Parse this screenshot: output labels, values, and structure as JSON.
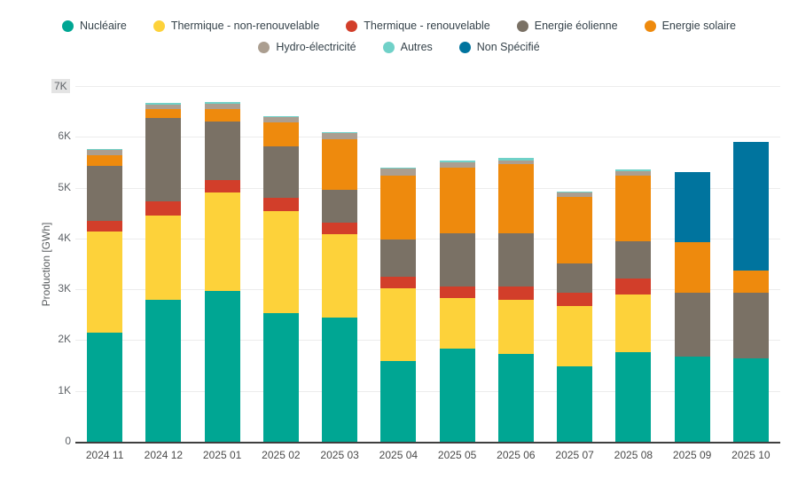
{
  "chart_data": {
    "type": "bar",
    "stacked": true,
    "title": "",
    "xlabel": "",
    "ylabel": "Production [GWh]",
    "unit": "GWh",
    "ylim": [
      0,
      7000
    ],
    "grid": true,
    "legend_position": "top",
    "ytick_labels": [
      "0",
      "1K",
      "2K",
      "3K",
      "4K",
      "5K",
      "6K",
      "7K"
    ],
    "highlighted_tick": "7K",
    "categories": [
      "2024 11",
      "2024 12",
      "2025 01",
      "2025 02",
      "2025 03",
      "2025 04",
      "2025 05",
      "2025 06",
      "2025 07",
      "2025 08",
      "2025 09",
      "2025 10"
    ],
    "series": [
      {
        "name": "Nucléaire",
        "color": "#00A693",
        "values": [
          2150,
          2790,
          2960,
          2530,
          2440,
          1590,
          1830,
          1720,
          1490,
          1770,
          1680,
          1640
        ]
      },
      {
        "name": "Thermique - non-renouvelable",
        "color": "#FDD23A",
        "values": [
          1990,
          1670,
          1950,
          2010,
          1640,
          1430,
          1000,
          1080,
          1180,
          1120,
          0,
          0
        ]
      },
      {
        "name": "Thermique - renouvelable",
        "color": "#D23E2A",
        "values": [
          200,
          270,
          240,
          260,
          230,
          230,
          220,
          250,
          270,
          320,
          0,
          0
        ]
      },
      {
        "name": "Energie éolienne",
        "color": "#7A7165",
        "values": [
          1090,
          1650,
          1160,
          1020,
          640,
          730,
          1050,
          1050,
          570,
          740,
          1260,
          1290
        ]
      },
      {
        "name": "Energie solaire",
        "color": "#EE8A0D",
        "values": [
          210,
          160,
          240,
          470,
          1010,
          1260,
          1300,
          1360,
          1310,
          1280,
          990,
          440
        ]
      },
      {
        "name": "Hydro-électricité",
        "color": "#AB9E90",
        "values": [
          100,
          100,
          110,
          100,
          110,
          130,
          100,
          80,
          80,
          100,
          0,
          0
        ]
      },
      {
        "name": "Autres",
        "color": "#70D1C8",
        "values": [
          20,
          30,
          20,
          20,
          20,
          20,
          30,
          40,
          30,
          30,
          0,
          0
        ]
      },
      {
        "name": "Non Spécifié",
        "color": "#00749E",
        "values": [
          0,
          0,
          0,
          0,
          0,
          0,
          0,
          0,
          0,
          0,
          1370,
          2530
        ]
      }
    ],
    "legend_rows": [
      5,
      3
    ]
  }
}
